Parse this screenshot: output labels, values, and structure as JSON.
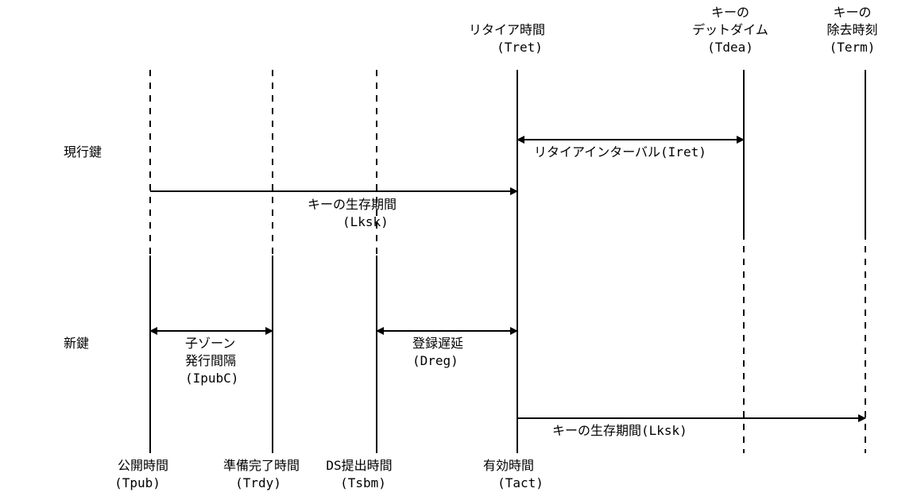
{
  "rows": {
    "current_key": "現行鍵",
    "new_key": "新鍵"
  },
  "top_events": {
    "retire": {
      "label": "リタイア時間",
      "abbr": "(Tret)"
    },
    "dead": {
      "label1": "キーの",
      "label2": "デットダイム",
      "abbr": "(Tdea)"
    },
    "remove": {
      "label1": "キーの",
      "label2": "除去時刻",
      "abbr": "(Term)"
    }
  },
  "bottom_events": {
    "publish": {
      "label": "公開時間",
      "abbr": "(Tpub)"
    },
    "ready": {
      "label": "準備完了時間",
      "abbr": "(Trdy)"
    },
    "ds_submit": {
      "label": "DS提出時間",
      "abbr": "(Tsbm)"
    },
    "active": {
      "label": "有効時間",
      "abbr": "(Tact)"
    }
  },
  "intervals": {
    "retire_interval": "リタイアインターバル(Iret)",
    "current_lifetime": {
      "label": "キーの生存期間",
      "abbr": "(Lksk)"
    },
    "child_zone": {
      "line1": "子ゾーン",
      "line2": "発行間隔",
      "abbr": "(IpubC)"
    },
    "registration": {
      "label": "登録遅延",
      "abbr": "(Dreg)"
    },
    "new_lifetime": "キーの生存期間(Lksk)"
  }
}
